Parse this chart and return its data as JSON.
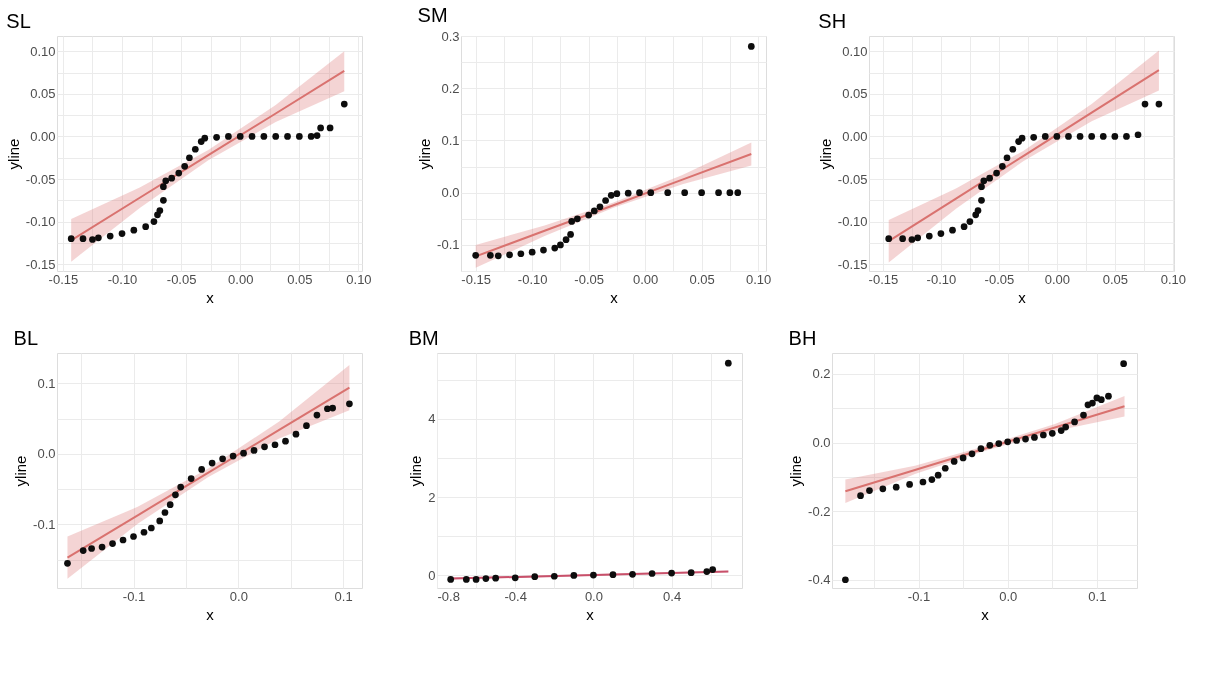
{
  "chart_data": [
    {
      "type": "scatter",
      "title": "SL",
      "xlabel": "x",
      "ylabel": "yline",
      "grid": true,
      "marker": "circle",
      "line_style": "solid",
      "xlim": [
        -0.155,
        0.103
      ],
      "ylim": [
        -0.158,
        0.118
      ],
      "xticks": [
        {
          "value": -0.15,
          "label": "-0.15"
        },
        {
          "value": -0.125,
          "label": null
        },
        {
          "value": -0.1,
          "label": "-0.10"
        },
        {
          "value": -0.075,
          "label": null
        },
        {
          "value": -0.05,
          "label": "-0.05"
        },
        {
          "value": -0.025,
          "label": null
        },
        {
          "value": 0,
          "label": "0.00"
        },
        {
          "value": 0.025,
          "label": null
        },
        {
          "value": 0.05,
          "label": "0.05"
        },
        {
          "value": 0.075,
          "label": null
        },
        {
          "value": 0.1,
          "label": "0.10"
        }
      ],
      "yticks": [
        {
          "value": -0.15,
          "label": "-0.15"
        },
        {
          "value": -0.125,
          "label": null
        },
        {
          "value": -0.1,
          "label": "-0.10"
        },
        {
          "value": -0.075,
          "label": null
        },
        {
          "value": -0.05,
          "label": "-0.05"
        },
        {
          "value": -0.025,
          "label": null
        },
        {
          "value": 0,
          "label": "0.00"
        },
        {
          "value": 0.025,
          "label": null
        },
        {
          "value": 0.05,
          "label": "0.05"
        },
        {
          "value": 0.075,
          "label": null
        },
        {
          "value": 0.1,
          "label": "0.10"
        }
      ],
      "series": [
        {
          "type": "line",
          "marker": "none",
          "color": "#d9726f",
          "x": [
            -0.143,
            -0.085,
            -0.027,
            0.03,
            0.088
          ],
          "values": [
            -0.122,
            -0.072,
            -0.022,
            0.027,
            0.077
          ],
          "lower": [
            -0.147,
            -0.084,
            -0.028,
            0.017,
            0.053
          ],
          "upper": [
            -0.097,
            -0.06,
            -0.016,
            0.037,
            0.1
          ]
        },
        {
          "color": "#0d0d0d",
          "x": [
            -0.143,
            -0.133,
            -0.125,
            -0.12,
            -0.11,
            -0.1,
            -0.09,
            -0.08,
            -0.073,
            -0.07,
            -0.068,
            -0.065,
            -0.065,
            -0.063,
            -0.058,
            -0.052,
            -0.047,
            -0.043,
            -0.038,
            -0.033,
            -0.03,
            -0.02,
            -0.01,
            0.0,
            0.01,
            0.02,
            0.03,
            0.04,
            0.05,
            0.06,
            0.065,
            0.068,
            0.076,
            0.088
          ],
          "values": [
            -0.12,
            -0.12,
            -0.121,
            -0.119,
            -0.117,
            -0.114,
            -0.11,
            -0.106,
            -0.1,
            -0.092,
            -0.087,
            -0.075,
            -0.059,
            -0.052,
            -0.049,
            -0.043,
            -0.035,
            -0.025,
            -0.015,
            -0.006,
            -0.002,
            -0.001,
            0.0,
            0.0,
            0.0,
            0.0,
            0.0,
            0.0,
            0.0,
            0.0,
            0.001,
            0.01,
            0.01,
            0.038
          ]
        }
      ]
    },
    {
      "type": "scatter",
      "title": "SM",
      "xlabel": "x",
      "ylabel": "yline",
      "grid": true,
      "marker": "circle",
      "line_style": "solid",
      "xlim": [
        -0.163,
        0.107
      ],
      "ylim": [
        -0.15,
        0.3
      ],
      "xticks": [
        {
          "value": -0.15,
          "label": "-0.15"
        },
        {
          "value": -0.125,
          "label": null
        },
        {
          "value": -0.1,
          "label": "-0.10"
        },
        {
          "value": -0.075,
          "label": null
        },
        {
          "value": -0.05,
          "label": "-0.05"
        },
        {
          "value": -0.025,
          "label": null
        },
        {
          "value": 0,
          "label": "0.00"
        },
        {
          "value": 0.025,
          "label": null
        },
        {
          "value": 0.05,
          "label": "0.05"
        },
        {
          "value": 0.075,
          "label": null
        },
        {
          "value": 0.1,
          "label": "0.10"
        }
      ],
      "yticks": [
        {
          "value": -0.15,
          "label": null
        },
        {
          "value": -0.1,
          "label": "-0.1"
        },
        {
          "value": -0.05,
          "label": null
        },
        {
          "value": 0,
          "label": "0.0"
        },
        {
          "value": 0.05,
          "label": null
        },
        {
          "value": 0.1,
          "label": "0.1"
        },
        {
          "value": 0.15,
          "label": null
        },
        {
          "value": 0.2,
          "label": "0.2"
        },
        {
          "value": 0.25,
          "label": null
        },
        {
          "value": 0.3,
          "label": "0.3"
        }
      ],
      "series": [
        {
          "type": "line",
          "marker": "none",
          "color": "#d9726f",
          "x": [
            -0.15,
            -0.089,
            -0.028,
            0.033,
            0.094
          ],
          "values": [
            -0.122,
            -0.073,
            -0.024,
            0.025,
            0.074
          ],
          "lower": [
            -0.144,
            -0.083,
            -0.029,
            0.016,
            0.052
          ],
          "upper": [
            -0.1,
            -0.063,
            -0.019,
            0.034,
            0.096
          ]
        },
        {
          "color": "#0d0d0d",
          "x": [
            -0.15,
            -0.137,
            -0.13,
            -0.12,
            -0.11,
            -0.1,
            -0.09,
            -0.08,
            -0.075,
            -0.07,
            -0.066,
            -0.065,
            -0.06,
            -0.05,
            -0.045,
            -0.04,
            -0.035,
            -0.03,
            -0.025,
            -0.015,
            -0.005,
            0.005,
            0.02,
            0.035,
            0.05,
            0.065,
            0.075,
            0.082,
            0.094
          ],
          "values": [
            -0.12,
            -0.12,
            -0.121,
            -0.119,
            -0.117,
            -0.114,
            -0.11,
            -0.106,
            -0.1,
            -0.09,
            -0.08,
            -0.055,
            -0.05,
            -0.043,
            -0.035,
            -0.027,
            -0.015,
            -0.005,
            -0.002,
            -0.001,
            0.0,
            0.0,
            0.0,
            0.0,
            0.0,
            0.0,
            0.0,
            0.0,
            0.28
          ]
        }
      ]
    },
    {
      "type": "scatter",
      "title": "SH",
      "xlabel": "x",
      "ylabel": "yline",
      "grid": true,
      "marker": "circle",
      "line_style": "solid",
      "xlim": [
        -0.162,
        0.101
      ],
      "ylim": [
        -0.158,
        0.118
      ],
      "xticks": [
        {
          "value": -0.15,
          "label": "-0.15"
        },
        {
          "value": -0.125,
          "label": null
        },
        {
          "value": -0.1,
          "label": "-0.10"
        },
        {
          "value": -0.075,
          "label": null
        },
        {
          "value": -0.05,
          "label": "-0.05"
        },
        {
          "value": -0.025,
          "label": null
        },
        {
          "value": 0,
          "label": "0.00"
        },
        {
          "value": 0.025,
          "label": null
        },
        {
          "value": 0.05,
          "label": "0.05"
        },
        {
          "value": 0.075,
          "label": null
        },
        {
          "value": 0.1,
          "label": "0.10"
        }
      ],
      "yticks": [
        {
          "value": -0.15,
          "label": "-0.15"
        },
        {
          "value": -0.125,
          "label": null
        },
        {
          "value": -0.1,
          "label": "-0.10"
        },
        {
          "value": -0.075,
          "label": null
        },
        {
          "value": -0.05,
          "label": "-0.05"
        },
        {
          "value": -0.025,
          "label": null
        },
        {
          "value": 0,
          "label": "0.00"
        },
        {
          "value": 0.025,
          "label": null
        },
        {
          "value": 0.05,
          "label": "0.05"
        },
        {
          "value": 0.075,
          "label": null
        },
        {
          "value": 0.1,
          "label": "0.10"
        }
      ],
      "series": [
        {
          "type": "line",
          "marker": "none",
          "color": "#d9726f",
          "x": [
            -0.145,
            -0.087,
            -0.029,
            0.03,
            0.088
          ],
          "values": [
            -0.123,
            -0.073,
            -0.023,
            0.028,
            0.078
          ],
          "lower": [
            -0.148,
            -0.085,
            -0.029,
            0.018,
            0.054
          ],
          "upper": [
            -0.098,
            -0.061,
            -0.017,
            0.038,
            0.101
          ]
        },
        {
          "color": "#0d0d0d",
          "x": [
            -0.145,
            -0.133,
            -0.125,
            -0.12,
            -0.11,
            -0.1,
            -0.09,
            -0.08,
            -0.075,
            -0.07,
            -0.068,
            -0.065,
            -0.065,
            -0.063,
            -0.058,
            -0.052,
            -0.047,
            -0.043,
            -0.038,
            -0.033,
            -0.03,
            -0.02,
            -0.01,
            0.0,
            0.01,
            0.02,
            0.03,
            0.04,
            0.05,
            0.06,
            0.07,
            0.076,
            0.088
          ],
          "values": [
            -0.12,
            -0.12,
            -0.121,
            -0.119,
            -0.117,
            -0.114,
            -0.11,
            -0.106,
            -0.1,
            -0.092,
            -0.087,
            -0.075,
            -0.059,
            -0.052,
            -0.049,
            -0.043,
            -0.035,
            -0.025,
            -0.015,
            -0.006,
            -0.002,
            -0.001,
            0.0,
            0.0,
            0.0,
            0.0,
            0.0,
            0.0,
            0.0,
            0.0,
            0.002,
            0.038,
            0.038
          ]
        }
      ]
    },
    {
      "type": "scatter",
      "title": "BL",
      "xlabel": "x",
      "ylabel": "yline",
      "grid": true,
      "marker": "circle",
      "line_style": "solid",
      "xlim": [
        -0.173,
        0.118
      ],
      "ylim": [
        -0.19,
        0.143
      ],
      "xticks": [
        {
          "value": -0.15,
          "label": null
        },
        {
          "value": -0.1,
          "label": "-0.1"
        },
        {
          "value": -0.05,
          "label": null
        },
        {
          "value": 0,
          "label": "0.0"
        },
        {
          "value": 0.05,
          "label": null
        },
        {
          "value": 0.1,
          "label": "0.1"
        }
      ],
      "yticks": [
        {
          "value": -0.15,
          "label": null
        },
        {
          "value": -0.1,
          "label": "-0.1"
        },
        {
          "value": -0.05,
          "label": null
        },
        {
          "value": 0,
          "label": "0.0"
        },
        {
          "value": 0.05,
          "label": null
        },
        {
          "value": 0.1,
          "label": "0.1"
        }
      ],
      "series": [
        {
          "type": "line",
          "marker": "none",
          "color": "#d9726f",
          "x": [
            -0.163,
            -0.096,
            -0.029,
            0.039,
            0.106
          ],
          "values": [
            -0.147,
            -0.087,
            -0.027,
            0.034,
            0.094
          ],
          "lower": [
            -0.177,
            -0.099,
            -0.033,
            0.022,
            0.062
          ],
          "upper": [
            -0.117,
            -0.075,
            -0.021,
            0.046,
            0.126
          ]
        },
        {
          "color": "#0d0d0d",
          "x": [
            -0.163,
            -0.148,
            -0.14,
            -0.13,
            -0.12,
            -0.11,
            -0.1,
            -0.09,
            -0.083,
            -0.075,
            -0.07,
            -0.065,
            -0.06,
            -0.055,
            -0.045,
            -0.035,
            -0.025,
            -0.015,
            -0.005,
            0.005,
            0.015,
            0.025,
            0.035,
            0.045,
            0.055,
            0.065,
            0.075,
            0.085,
            0.09,
            0.106
          ],
          "values": [
            -0.155,
            -0.137,
            -0.134,
            -0.132,
            -0.127,
            -0.122,
            -0.117,
            -0.111,
            -0.105,
            -0.095,
            -0.083,
            -0.072,
            -0.058,
            -0.047,
            -0.035,
            -0.022,
            -0.013,
            -0.007,
            -0.003,
            0.001,
            0.005,
            0.01,
            0.013,
            0.018,
            0.028,
            0.04,
            0.055,
            0.064,
            0.065,
            0.071
          ]
        }
      ]
    },
    {
      "type": "scatter",
      "title": "BM",
      "xlabel": "x",
      "ylabel": "yline",
      "grid": true,
      "marker": "circle",
      "line_style": "solid",
      "xlim": [
        -0.8,
        0.76
      ],
      "ylim": [
        -0.32,
        5.68
      ],
      "xticks": [
        {
          "value": -0.8,
          "label": "-0.8"
        },
        {
          "value": -0.6,
          "label": null
        },
        {
          "value": -0.4,
          "label": "-0.4"
        },
        {
          "value": -0.2,
          "label": null
        },
        {
          "value": 0,
          "label": "0.0"
        },
        {
          "value": 0.2,
          "label": null
        },
        {
          "value": 0.4,
          "label": "0.4"
        },
        {
          "value": 0.6,
          "label": null
        }
      ],
      "yticks": [
        {
          "value": 0,
          "label": "0"
        },
        {
          "value": 1,
          "label": null
        },
        {
          "value": 2,
          "label": "2"
        },
        {
          "value": 3,
          "label": null
        },
        {
          "value": 4,
          "label": "4"
        },
        {
          "value": 5,
          "label": null
        }
      ],
      "series": [
        {
          "type": "line",
          "marker": "none",
          "color": "#c8506a",
          "x": [
            -0.73,
            0.69
          ],
          "values": [
            -0.08,
            0.1
          ],
          "lower": [
            -0.1,
            0.08
          ],
          "upper": [
            -0.06,
            0.12
          ]
        },
        {
          "color": "#0d0d0d",
          "x": [
            -0.73,
            -0.65,
            -0.6,
            -0.55,
            -0.5,
            -0.4,
            -0.3,
            -0.2,
            -0.1,
            0.0,
            0.1,
            0.2,
            0.3,
            0.4,
            0.5,
            0.58,
            0.61,
            0.69
          ],
          "values": [
            -0.1,
            -0.1,
            -0.1,
            -0.08,
            -0.07,
            -0.06,
            -0.03,
            -0.02,
            0.0,
            0.01,
            0.02,
            0.03,
            0.05,
            0.06,
            0.07,
            0.1,
            0.15,
            5.42
          ]
        }
      ]
    },
    {
      "type": "scatter",
      "title": "BH",
      "xlabel": "x",
      "ylabel": "yline",
      "grid": true,
      "marker": "circle",
      "line_style": "solid",
      "xlim": [
        -0.197,
        0.145
      ],
      "ylim": [
        -0.424,
        0.261
      ],
      "xticks": [
        {
          "value": -0.15,
          "label": null
        },
        {
          "value": -0.1,
          "label": "-0.1"
        },
        {
          "value": -0.05,
          "label": null
        },
        {
          "value": 0,
          "label": "0.0"
        },
        {
          "value": 0.05,
          "label": null
        },
        {
          "value": 0.1,
          "label": "0.1"
        }
      ],
      "yticks": [
        {
          "value": -0.4,
          "label": "-0.4"
        },
        {
          "value": -0.3,
          "label": null
        },
        {
          "value": -0.2,
          "label": "-0.2"
        },
        {
          "value": -0.1,
          "label": null
        },
        {
          "value": 0,
          "label": "0.0"
        },
        {
          "value": 0.1,
          "label": null
        },
        {
          "value": 0.2,
          "label": "0.2"
        }
      ],
      "series": [
        {
          "type": "line",
          "marker": "none",
          "color": "#d9726f",
          "x": [
            -0.182,
            -0.104,
            -0.026,
            0.053,
            0.131
          ],
          "values": [
            -0.142,
            -0.08,
            -0.018,
            0.044,
            0.106
          ],
          "lower": [
            -0.176,
            -0.092,
            -0.025,
            0.034,
            0.076
          ],
          "upper": [
            -0.108,
            -0.068,
            -0.011,
            0.054,
            0.136
          ]
        },
        {
          "color": "#0d0d0d",
          "x": [
            -0.182,
            -0.165,
            -0.155,
            -0.14,
            -0.125,
            -0.11,
            -0.095,
            -0.085,
            -0.078,
            -0.07,
            -0.06,
            -0.05,
            -0.04,
            -0.03,
            -0.02,
            -0.01,
            0.0,
            0.01,
            0.02,
            0.03,
            0.04,
            0.05,
            0.06,
            0.065,
            0.075,
            0.085,
            0.09,
            0.095,
            0.1,
            0.105,
            0.113,
            0.13
          ],
          "values": [
            -0.4,
            -0.155,
            -0.14,
            -0.135,
            -0.13,
            -0.122,
            -0.115,
            -0.108,
            -0.095,
            -0.075,
            -0.055,
            -0.045,
            -0.033,
            -0.018,
            -0.008,
            -0.003,
            0.002,
            0.006,
            0.01,
            0.015,
            0.022,
            0.027,
            0.035,
            0.045,
            0.06,
            0.08,
            0.11,
            0.115,
            0.13,
            0.125,
            0.135,
            0.23
          ]
        }
      ]
    }
  ]
}
